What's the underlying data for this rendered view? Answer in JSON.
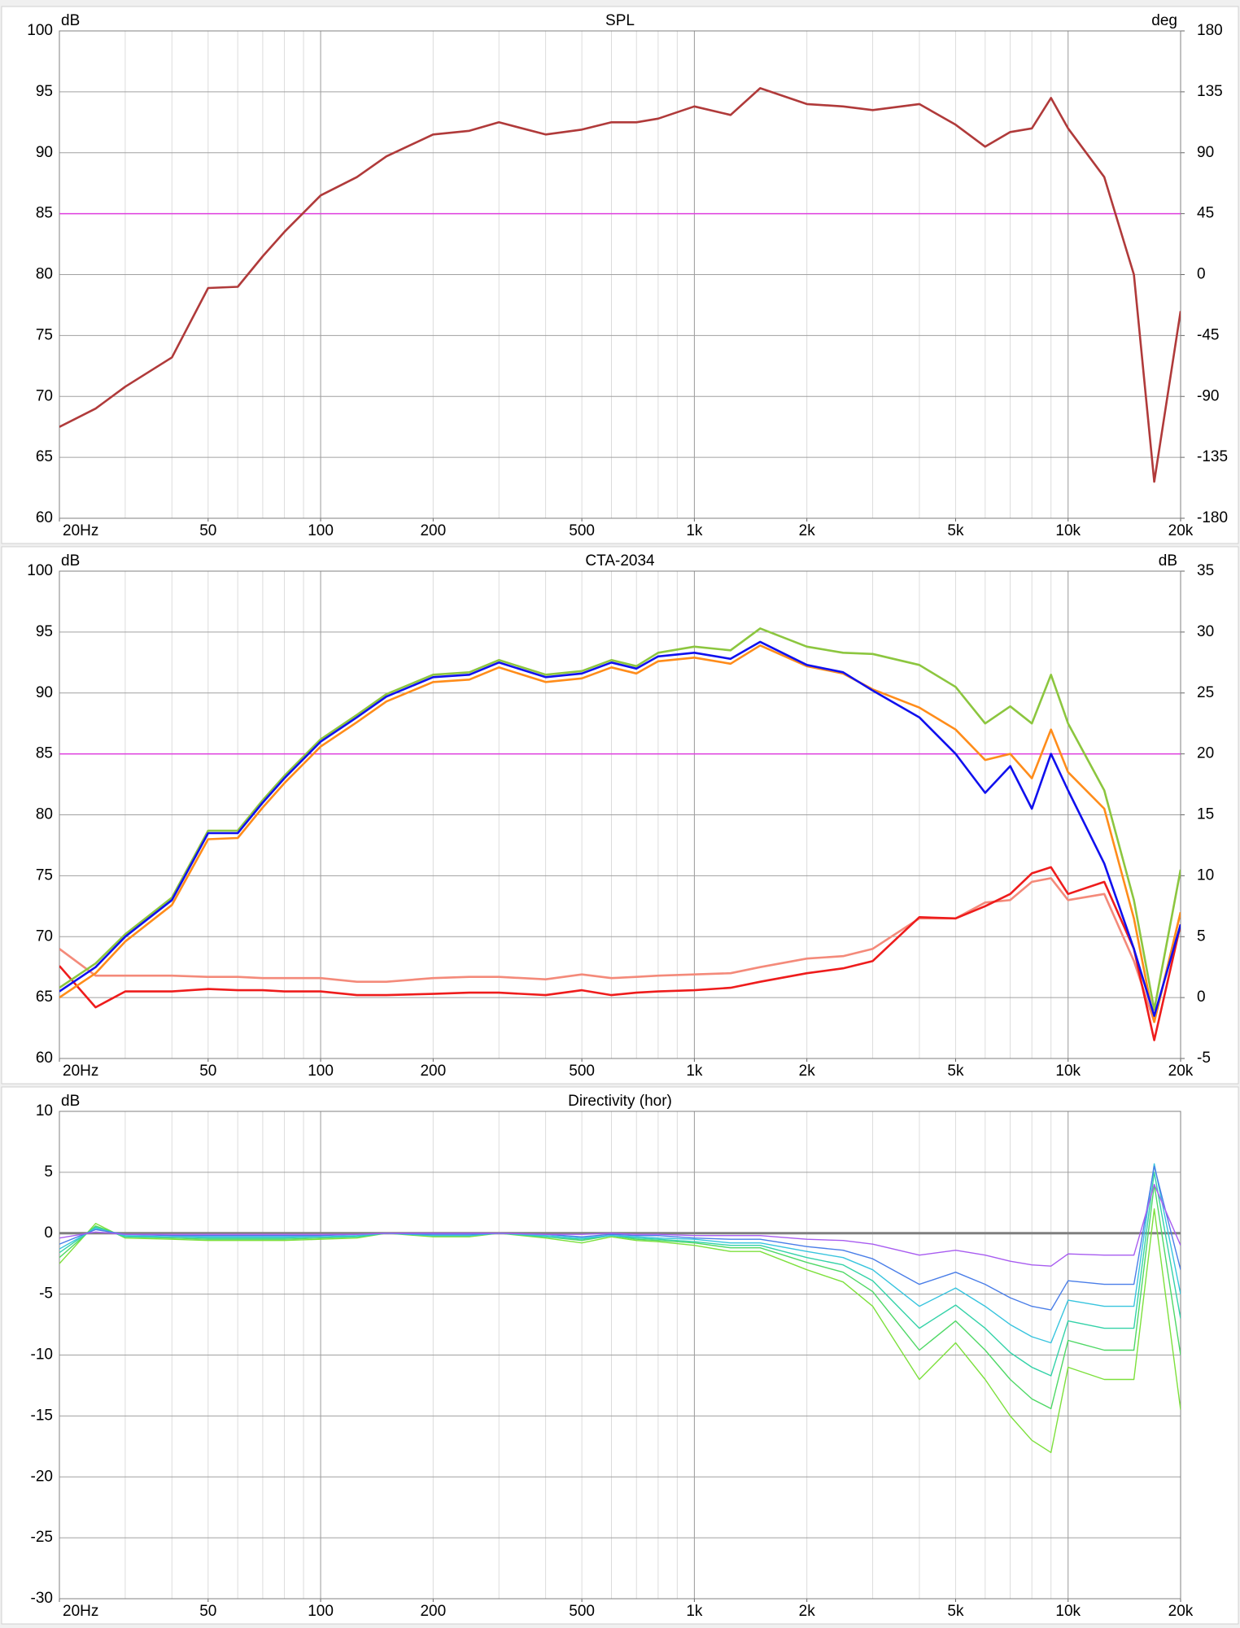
{
  "chart_data": [
    {
      "type": "line",
      "title": "SPL",
      "y_label": "dB",
      "y2_label": "deg",
      "xscale": "log",
      "x": [
        20,
        25,
        30,
        40,
        50,
        60,
        70,
        80,
        100,
        125,
        150,
        200,
        250,
        300,
        400,
        500,
        600,
        700,
        800,
        1000,
        1250,
        1500,
        2000,
        2500,
        3000,
        4000,
        5000,
        6000,
        7000,
        8000,
        9000,
        10000,
        12500,
        15000,
        17000,
        20000
      ],
      "xlim": [
        20,
        20000
      ],
      "xticks": [
        {
          "value": 20,
          "label": "20Hz"
        },
        50,
        100,
        200,
        500,
        {
          "value": 1000,
          "label": "1k"
        },
        {
          "value": 2000,
          "label": "2k"
        },
        {
          "value": 5000,
          "label": "5k"
        },
        {
          "value": 10000,
          "label": "10k"
        },
        {
          "value": 20000,
          "label": "20k"
        }
      ],
      "ylim": [
        60,
        100
      ],
      "yticks": [
        60,
        65,
        70,
        75,
        80,
        85,
        90,
        95,
        100
      ],
      "y2lim": [
        -180,
        180
      ],
      "y2ticks": [
        -180,
        -135,
        -90,
        -45,
        0,
        45,
        90,
        135,
        180
      ],
      "hline": {
        "value": 85,
        "color": "#e040e0"
      },
      "line_width": 2.6,
      "series": [
        {
          "color": "#b03a3a",
          "values": [
            67.5,
            69,
            70.8,
            73.2,
            78.9,
            79,
            81.5,
            83.5,
            86.5,
            88,
            89.7,
            91.5,
            91.8,
            92.5,
            91.5,
            91.9,
            92.5,
            92.5,
            92.8,
            93.8,
            93.1,
            95.3,
            94,
            93.8,
            93.5,
            94,
            92.3,
            90.5,
            91.7,
            92,
            94.5,
            92,
            88,
            80,
            63,
            77
          ]
        }
      ]
    },
    {
      "type": "line",
      "title": "CTA-2034",
      "y_label": "dB",
      "y2_label": "dB",
      "xscale": "log",
      "x": [
        20,
        25,
        30,
        40,
        50,
        60,
        70,
        80,
        100,
        125,
        150,
        200,
        250,
        300,
        400,
        500,
        600,
        700,
        800,
        1000,
        1250,
        1500,
        2000,
        2500,
        3000,
        4000,
        5000,
        6000,
        7000,
        8000,
        9000,
        10000,
        12500,
        15000,
        17000,
        20000
      ],
      "xlim": [
        20,
        20000
      ],
      "xticks": [
        {
          "value": 20,
          "label": "20Hz"
        },
        50,
        100,
        200,
        500,
        {
          "value": 1000,
          "label": "1k"
        },
        {
          "value": 2000,
          "label": "2k"
        },
        {
          "value": 5000,
          "label": "5k"
        },
        {
          "value": 10000,
          "label": "10k"
        },
        {
          "value": 20000,
          "label": "20k"
        }
      ],
      "ylim": [
        60,
        100
      ],
      "yticks": [
        60,
        65,
        70,
        75,
        80,
        85,
        90,
        95,
        100
      ],
      "y2lim": [
        -5,
        35
      ],
      "y2ticks": [
        -5,
        0,
        5,
        10,
        15,
        20,
        25,
        30,
        35
      ],
      "hline": {
        "value": 85,
        "color": "#e040e0"
      },
      "line_width": 2.6,
      "series": [
        {
          "color": "#f48a7a",
          "axis": "y2",
          "values": [
            4,
            1.8,
            1.8,
            1.8,
            1.7,
            1.7,
            1.6,
            1.6,
            1.6,
            1.3,
            1.3,
            1.6,
            1.7,
            1.7,
            1.5,
            1.9,
            1.6,
            1.7,
            1.8,
            1.9,
            2,
            2.5,
            3.2,
            3.4,
            4,
            6.5,
            6.5,
            7.8,
            8,
            9.5,
            9.8,
            8,
            8.5,
            3,
            -2,
            7
          ]
        },
        {
          "color": "#ee1c1c",
          "axis": "y2",
          "values": [
            2.6,
            -0.8,
            0.5,
            0.5,
            0.7,
            0.6,
            0.6,
            0.5,
            0.5,
            0.2,
            0.2,
            0.3,
            0.4,
            0.4,
            0.2,
            0.6,
            0.2,
            0.4,
            0.5,
            0.6,
            0.8,
            1.3,
            2,
            2.4,
            3,
            6.6,
            6.5,
            7.5,
            8.5,
            10.2,
            10.7,
            8.5,
            9.5,
            4,
            -3.5,
            6
          ]
        },
        {
          "color": "#ff8c1a",
          "values": [
            65,
            67,
            69.6,
            72.6,
            78,
            78.1,
            80.6,
            82.6,
            85.6,
            87.6,
            89.3,
            90.9,
            91.1,
            92.1,
            90.9,
            91.2,
            92.1,
            91.6,
            92.6,
            92.9,
            92.4,
            93.9,
            92.2,
            91.6,
            90.3,
            88.8,
            87,
            84.5,
            85,
            83,
            87,
            83.5,
            80.5,
            71.5,
            63,
            72
          ]
        },
        {
          "color": "#8cc63f",
          "values": [
            65.8,
            67.8,
            70.2,
            73.2,
            78.7,
            78.7,
            81.2,
            83.2,
            86.2,
            88.2,
            89.9,
            91.5,
            91.7,
            92.7,
            91.5,
            91.8,
            92.7,
            92.2,
            93.3,
            93.8,
            93.5,
            95.3,
            93.8,
            93.3,
            93.2,
            92.3,
            90.5,
            87.5,
            88.9,
            87.5,
            91.5,
            87.5,
            82,
            73,
            64,
            75.5
          ]
        },
        {
          "color": "#1010ee",
          "values": [
            65.5,
            67.5,
            70,
            73,
            78.5,
            78.5,
            81,
            83,
            86,
            88,
            89.7,
            91.3,
            91.5,
            92.5,
            91.3,
            91.6,
            92.5,
            92,
            93,
            93.3,
            92.8,
            94.2,
            92.3,
            91.7,
            90.2,
            88,
            85,
            81.8,
            84,
            80.5,
            85,
            82,
            76,
            69,
            63.5,
            71
          ]
        }
      ]
    },
    {
      "type": "line",
      "title": "Directivity (hor)",
      "y_label": "dB",
      "xscale": "log",
      "x": [
        20,
        25,
        30,
        40,
        50,
        60,
        70,
        80,
        100,
        125,
        150,
        200,
        250,
        300,
        400,
        500,
        600,
        700,
        800,
        1000,
        1250,
        1500,
        2000,
        2500,
        3000,
        4000,
        5000,
        6000,
        7000,
        8000,
        9000,
        10000,
        12500,
        15000,
        17000,
        20000
      ],
      "xlim": [
        20,
        20000
      ],
      "xticks": [
        {
          "value": 20,
          "label": "20Hz"
        },
        50,
        100,
        200,
        500,
        {
          "value": 1000,
          "label": "1k"
        },
        {
          "value": 2000,
          "label": "2k"
        },
        {
          "value": 5000,
          "label": "5k"
        },
        {
          "value": 10000,
          "label": "10k"
        },
        {
          "value": 20000,
          "label": "20k"
        }
      ],
      "ylim": [
        -30,
        10
      ],
      "yticks": [
        -30,
        -25,
        -20,
        -15,
        -10,
        -5,
        0,
        5,
        10
      ],
      "hline": {
        "value": 0,
        "color": "#7f7f7f"
      },
      "line_width": 1.4,
      "series": [
        {
          "color": "#7de03c",
          "values": [
            -2.5,
            0.8,
            -0.4,
            -0.5,
            -0.6,
            -0.6,
            -0.6,
            -0.6,
            -0.5,
            -0.4,
            0,
            -0.3,
            -0.3,
            0,
            -0.4,
            -0.8,
            -0.3,
            -0.6,
            -0.7,
            -1,
            -1.5,
            -1.5,
            -3,
            -4,
            -6,
            -12,
            -9,
            -12,
            -15,
            -17,
            -18,
            -11,
            -12,
            -12,
            2,
            -14.5
          ]
        },
        {
          "color": "#4fd866",
          "values": [
            -2,
            0.6,
            -0.3,
            -0.4,
            -0.5,
            -0.5,
            -0.5,
            -0.5,
            -0.4,
            -0.3,
            0,
            -0.2,
            -0.2,
            0,
            -0.3,
            -0.6,
            -0.2,
            -0.5,
            -0.6,
            -0.8,
            -1.2,
            -1.2,
            -2.4,
            -3.2,
            -4.8,
            -9.6,
            -7.2,
            -9.6,
            -12,
            -13.6,
            -14.4,
            -8.8,
            -9.6,
            -9.6,
            4,
            -10
          ]
        },
        {
          "color": "#34d2a8",
          "values": [
            -1.6,
            0.5,
            -0.3,
            -0.3,
            -0.4,
            -0.4,
            -0.4,
            -0.4,
            -0.3,
            -0.3,
            0,
            -0.2,
            -0.2,
            0,
            -0.3,
            -0.5,
            -0.2,
            -0.4,
            -0.5,
            -0.7,
            -1,
            -1,
            -2,
            -2.6,
            -3.9,
            -7.8,
            -5.9,
            -7.8,
            -9.8,
            -11,
            -11.7,
            -7.2,
            -7.8,
            -7.8,
            5,
            -7
          ]
        },
        {
          "color": "#38c4de",
          "values": [
            -1.3,
            0.4,
            -0.2,
            -0.3,
            -0.3,
            -0.3,
            -0.3,
            -0.3,
            -0.3,
            -0.2,
            0,
            -0.2,
            -0.2,
            0,
            -0.2,
            -0.4,
            -0.2,
            -0.3,
            -0.4,
            -0.5,
            -0.8,
            -0.8,
            -1.5,
            -2,
            -3,
            -6,
            -4.5,
            -6,
            -7.5,
            -8.5,
            -9,
            -5.5,
            -6,
            -6,
            5.7,
            -5
          ]
        },
        {
          "color": "#4a7ee8",
          "values": [
            -0.9,
            0.3,
            -0.1,
            -0.2,
            -0.2,
            -0.2,
            -0.2,
            -0.2,
            -0.2,
            -0.1,
            0,
            -0.1,
            -0.1,
            0,
            -0.1,
            -0.3,
            -0.1,
            -0.2,
            -0.2,
            -0.4,
            -0.5,
            -0.5,
            -1.1,
            -1.4,
            -2.1,
            -4.2,
            -3.2,
            -4.2,
            -5.3,
            -6,
            -6.3,
            -3.9,
            -4.2,
            -4.2,
            5.5,
            -3
          ]
        },
        {
          "color": "#a85cf0",
          "values": [
            -0.4,
            0.1,
            -0.1,
            -0.1,
            -0.1,
            -0.1,
            -0.1,
            -0.1,
            -0.1,
            -0.1,
            0,
            0,
            0,
            0,
            -0.1,
            -0.1,
            0,
            -0.1,
            -0.1,
            -0.2,
            -0.2,
            -0.2,
            -0.5,
            -0.6,
            -0.9,
            -1.8,
            -1.4,
            -1.8,
            -2.3,
            -2.6,
            -2.7,
            -1.7,
            -1.8,
            -1.8,
            4,
            -1
          ]
        }
      ]
    }
  ]
}
